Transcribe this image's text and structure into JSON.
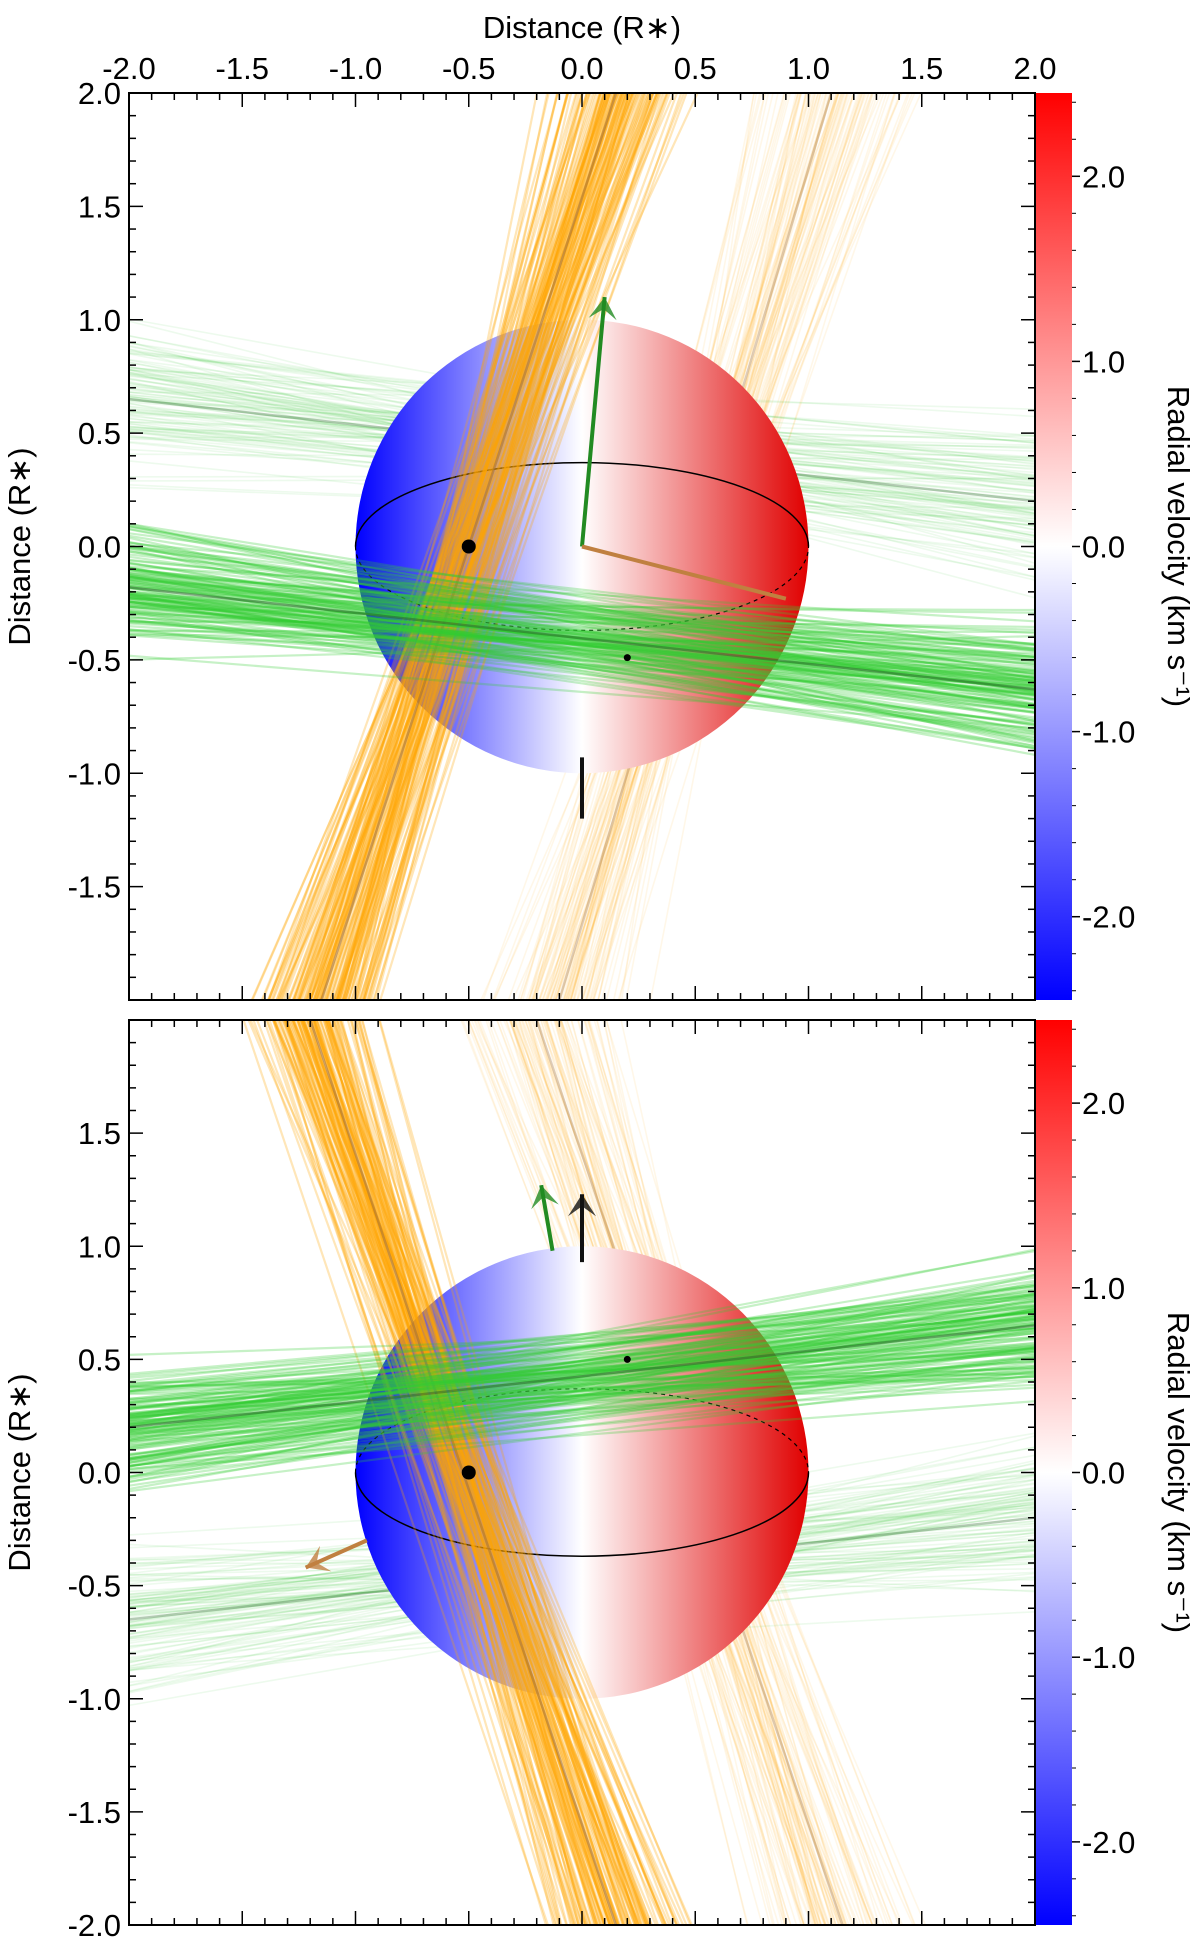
{
  "chart_data": {
    "type": "scatter",
    "description_labels": {
      "top_xlabel": "Distance (R∗)",
      "ylabel": "Distance (R∗)",
      "colorbar_label": "Radial velocity (km s⁻¹)"
    },
    "x_ticks": [
      "-2.0",
      "-1.5",
      "-1.0",
      "-0.5",
      "0.0",
      "0.5",
      "1.0",
      "1.5",
      "2.0"
    ],
    "xlim": [
      -2,
      2
    ],
    "ylim": [
      -2,
      2
    ],
    "colorbar": {
      "range": [
        -2.45,
        2.45
      ],
      "ticks": [
        "2.0",
        "1.0",
        "0.0",
        "-1.0",
        "-2.0"
      ],
      "low_color": "#0000ff",
      "mid_color": "#ffffff",
      "high_color": "#ff0000"
    },
    "colors": {
      "orange": "#ffa500",
      "green": "#33cc33",
      "spin_green": "#228b22",
      "spin_brown": "#c08040"
    },
    "panels": [
      {
        "name": "top",
        "y_ticks": [
          "2.0",
          "1.5",
          "1.0",
          "0.5",
          "0.0",
          "-0.5",
          "-1.0",
          "-1.5"
        ],
        "orange_bands": [
          {
            "strength": "strong",
            "start": [
              -1.15,
              -2
            ],
            "end": [
              0.15,
              2
            ],
            "spread": 0.38
          },
          {
            "strength": "faint",
            "start": [
              -0.1,
              -2
            ],
            "end": [
              1.1,
              2
            ],
            "spread": 0.45
          }
        ],
        "green_bands": [
          {
            "strength": "strong",
            "start": [
              -2,
              -0.18
            ],
            "end": [
              2,
              -0.63
            ],
            "spread": 0.38
          },
          {
            "strength": "faint",
            "start": [
              -2,
              0.65
            ],
            "end": [
              2,
              0.2
            ],
            "spread": 0.45
          }
        ],
        "equator_tilt": 1,
        "planet_markers": [
          [
            -0.5,
            0.0
          ],
          [
            0.2,
            -0.49
          ]
        ],
        "spin_axis": {
          "green": [
            [
              0,
              0
            ],
            [
              0.1,
              1.1
            ]
          ],
          "brown": [
            [
              0,
              0
            ],
            [
              0.9,
              -0.23
            ]
          ],
          "black": [
            [
              0,
              -0.93
            ],
            [
              0,
              -1.2
            ]
          ]
        }
      },
      {
        "name": "bottom",
        "y_ticks": [
          "1.5",
          "1.0",
          "0.5",
          "0.0",
          "-0.5",
          "-1.0",
          "-1.5",
          "-2.0"
        ],
        "orange_bands": [
          {
            "strength": "strong",
            "start": [
              -1.2,
              2
            ],
            "end": [
              0.15,
              -2
            ],
            "spread": 0.38
          },
          {
            "strength": "faint",
            "start": [
              -0.2,
              2
            ],
            "end": [
              1.15,
              -2
            ],
            "spread": 0.45
          }
        ],
        "green_bands": [
          {
            "strength": "strong",
            "start": [
              -2,
              0.2
            ],
            "end": [
              2,
              0.65
            ],
            "spread": 0.38
          },
          {
            "strength": "faint",
            "start": [
              -2,
              -0.65
            ],
            "end": [
              2,
              -0.2
            ],
            "spread": 0.45
          }
        ],
        "equator_tilt": -1,
        "planet_markers": [
          [
            -0.5,
            0.0
          ],
          [
            0.2,
            0.5
          ]
        ],
        "spin_axis": {
          "green": [
            [
              -0.13,
              0.98
            ],
            [
              -0.18,
              1.27
            ]
          ],
          "brown": [
            [
              -0.95,
              -0.3
            ],
            [
              -1.22,
              -0.42
            ]
          ],
          "black": [
            [
              0,
              0.93
            ],
            [
              0,
              1.23
            ]
          ]
        }
      }
    ]
  }
}
